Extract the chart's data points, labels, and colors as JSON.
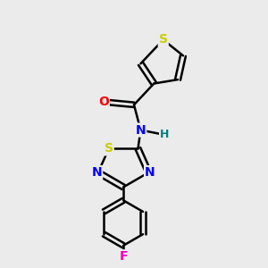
{
  "bg_color": "#ebebeb",
  "bond_color": "#000000",
  "bond_width": 1.8,
  "atom_colors": {
    "S": "#cccc00",
    "N": "#0000ff",
    "O": "#ff0000",
    "F": "#ff00bb",
    "H": "#008080",
    "C": "#000000"
  },
  "font_size": 10,
  "figsize": [
    3.0,
    3.0
  ],
  "dpi": 100
}
